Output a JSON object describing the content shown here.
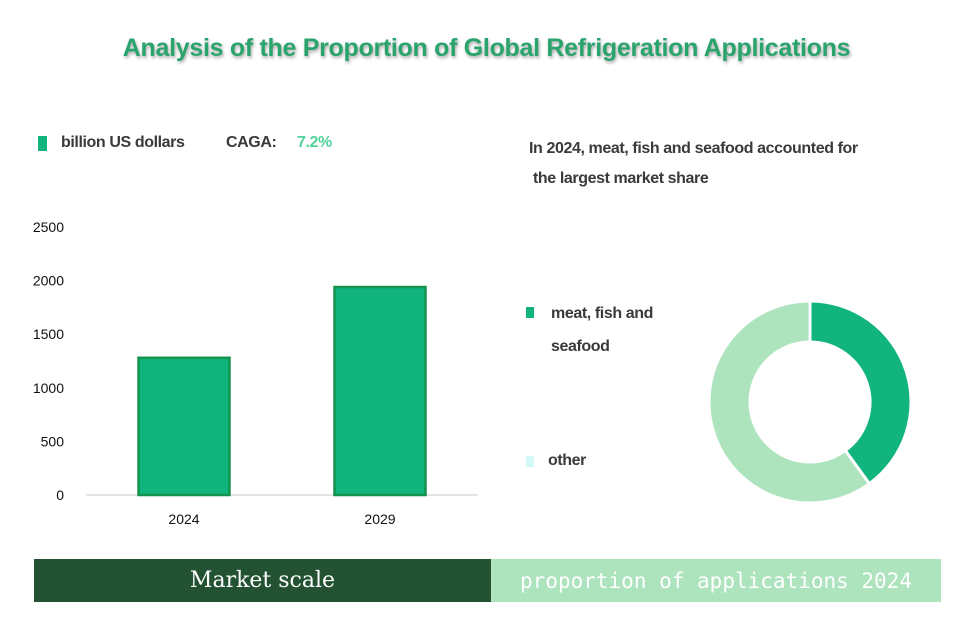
{
  "title": "Analysis of the Proportion of Global Refrigeration Applications",
  "bar_legend": {
    "unit_label": "billion US dollars",
    "caga_label": "CAGA:",
    "caga_value": "7.2%"
  },
  "donut_note": {
    "line1": "In 2024, meat, fish and seafood accounted for",
    "line2": "the largest market share"
  },
  "footer": {
    "left_label": "Market scale",
    "right_label": "proportion of applications 2024"
  },
  "colors": {
    "primary_green": "#10b47c",
    "bar_border": "#13934f",
    "light_green": "#ade3bd",
    "other_swatch": "#d4f8f4",
    "dark_green": "#225231"
  },
  "chart_data": [
    {
      "type": "bar",
      "categories": [
        "2024",
        "2029"
      ],
      "values": [
        1280,
        1940
      ],
      "ylim": [
        0,
        2500
      ],
      "yticks": [
        "0",
        "500",
        "1000",
        "1500",
        "2000",
        "2500"
      ],
      "legend": "top-left",
      "grid": false
    },
    {
      "type": "pie",
      "labels": [
        "meat, fish and seafood",
        "other"
      ],
      "values": [
        40,
        60
      ],
      "donut": true,
      "legend": "left"
    }
  ]
}
